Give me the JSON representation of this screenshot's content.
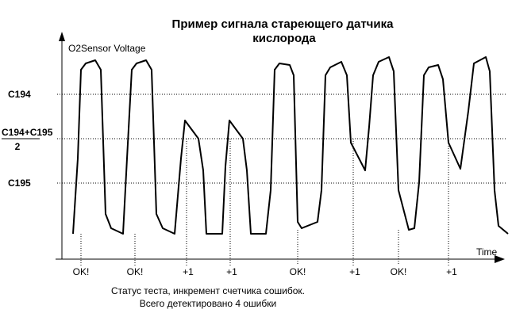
{
  "title_line1": "Пример сигнала стареющего датчика",
  "title_line2": "кислорода",
  "y_axis_label": "O2Sensor Voltage",
  "x_axis_label": "Time",
  "levels": {
    "c194": "C194",
    "mid_top": "C194+C195",
    "mid_bottom": "2",
    "c195": "C195"
  },
  "markers": [
    "OK!",
    "OK!",
    "+1",
    "+1",
    "OK!",
    "+1",
    "OK!",
    "+1"
  ],
  "caption_line1": "Статус теста, инкремент счетчика сошибок.",
  "caption_line2": "Всего детектировано 4 ошибки",
  "colors": {
    "line": "#000000",
    "guide": "#000000",
    "background": "#ffffff"
  }
}
